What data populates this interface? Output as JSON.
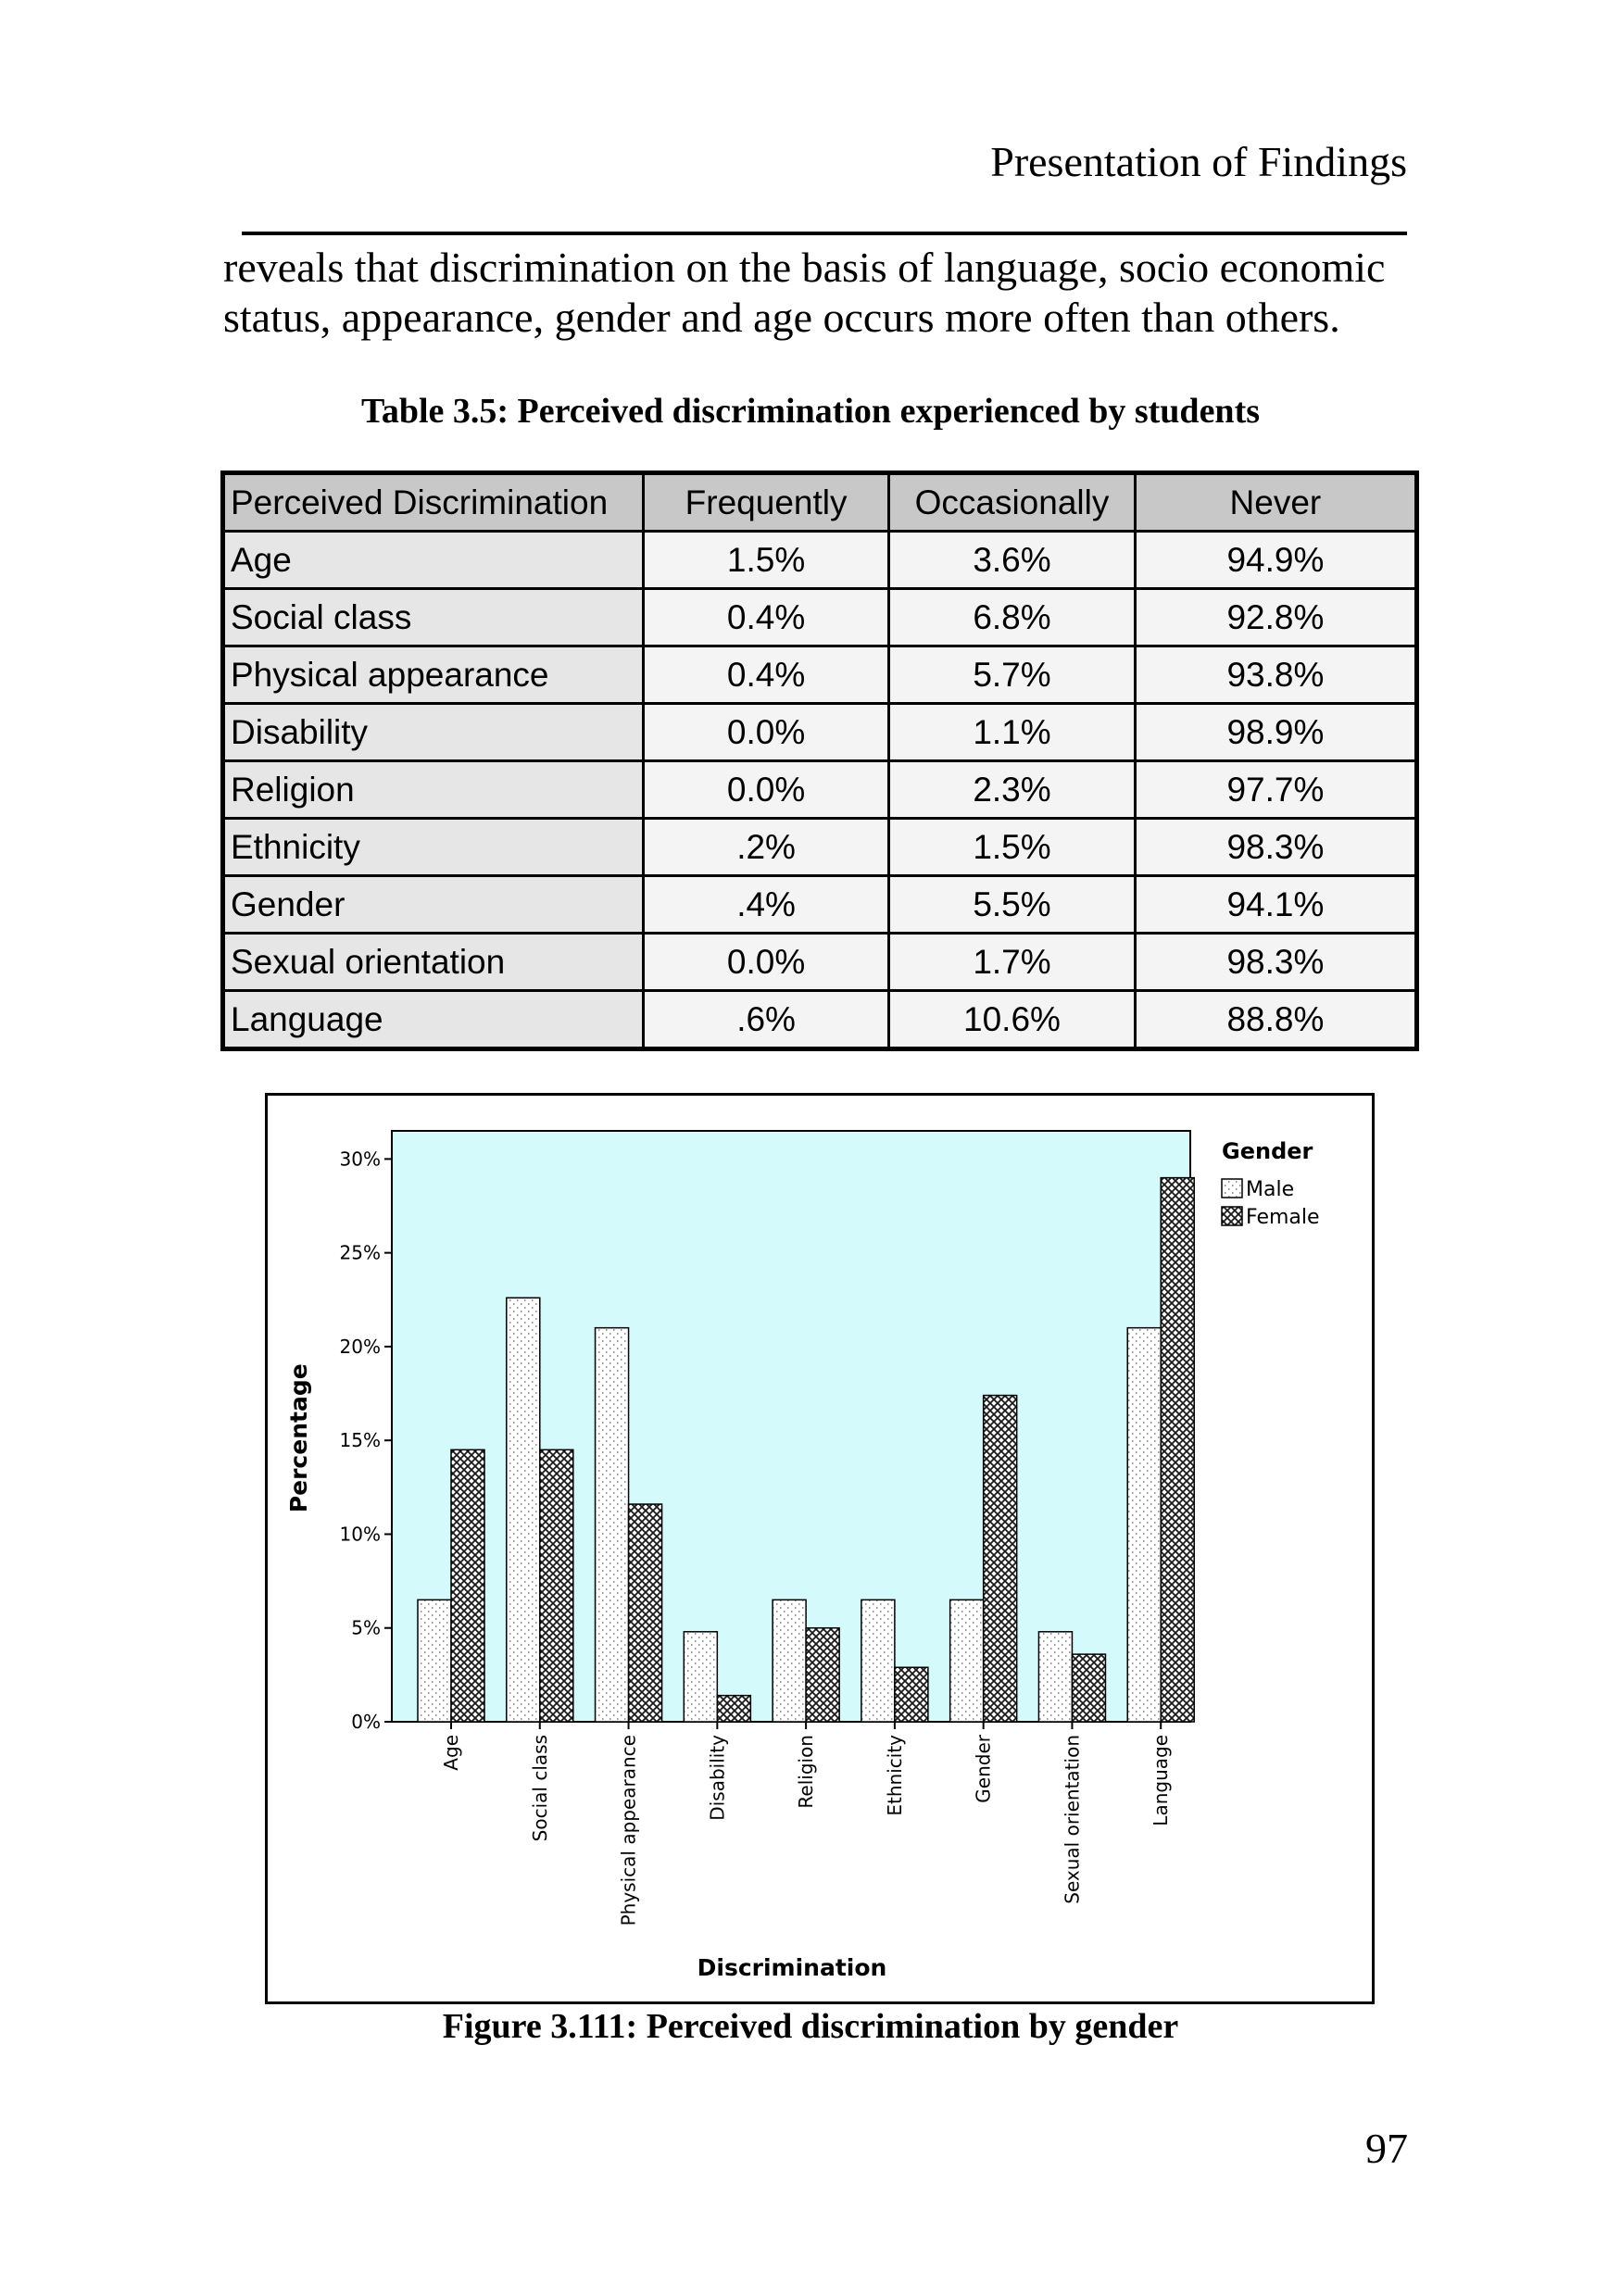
{
  "page": {
    "running_head": "Presentation of Findings",
    "body_text": "reveals that discrimination on the basis of language, socio economic status, appearance, gender and age occurs more often than others.",
    "table_caption": "Table 3.5: Perceived discrimination experienced by students",
    "figure_caption": "Figure 3.111: Perceived discrimination by gender",
    "page_number": "97"
  },
  "table": {
    "headers": [
      "Perceived Discrimination",
      "Frequently",
      "Occasionally",
      "Never"
    ],
    "rows": [
      [
        "Age",
        "1.5%",
        "3.6%",
        "94.9%"
      ],
      [
        "Social class",
        "0.4%",
        "6.8%",
        "92.8%"
      ],
      [
        "Physical appearance",
        "0.4%",
        "5.7%",
        "93.8%"
      ],
      [
        "Disability",
        "0.0%",
        "1.1%",
        "98.9%"
      ],
      [
        "Religion",
        "0.0%",
        "2.3%",
        "97.7%"
      ],
      [
        "Ethnicity",
        ".2%",
        "1.5%",
        "98.3%"
      ],
      [
        "Gender",
        ".4%",
        "5.5%",
        "94.1%"
      ],
      [
        "Sexual orientation",
        "0.0%",
        "1.7%",
        "98.3%"
      ],
      [
        "Language",
        ".6%",
        "10.6%",
        "88.8%"
      ]
    ]
  },
  "chart_data": {
    "type": "bar",
    "title": "",
    "xlabel": "Discrimination",
    "ylabel": "Percentage",
    "ylim": [
      0,
      31.5
    ],
    "yticks": [
      "0%",
      "5%",
      "10%",
      "15%",
      "20%",
      "25%",
      "30%"
    ],
    "categories": [
      "Age",
      "Social class",
      "Physical appearance",
      "Disability",
      "Religion",
      "Ethnicity",
      "Gender",
      "Sexual orientation",
      "Language"
    ],
    "legend_title": "Gender",
    "legend_position": "top-right",
    "series": [
      {
        "name": "Male",
        "values": [
          6.5,
          22.6,
          21.0,
          4.8,
          6.5,
          6.5,
          6.5,
          4.8,
          21.0
        ]
      },
      {
        "name": "Female",
        "values": [
          14.5,
          14.5,
          11.6,
          1.4,
          5.0,
          2.9,
          17.4,
          3.6,
          29.0
        ]
      }
    ],
    "plot_background": "#d4fafc",
    "grid": false
  }
}
